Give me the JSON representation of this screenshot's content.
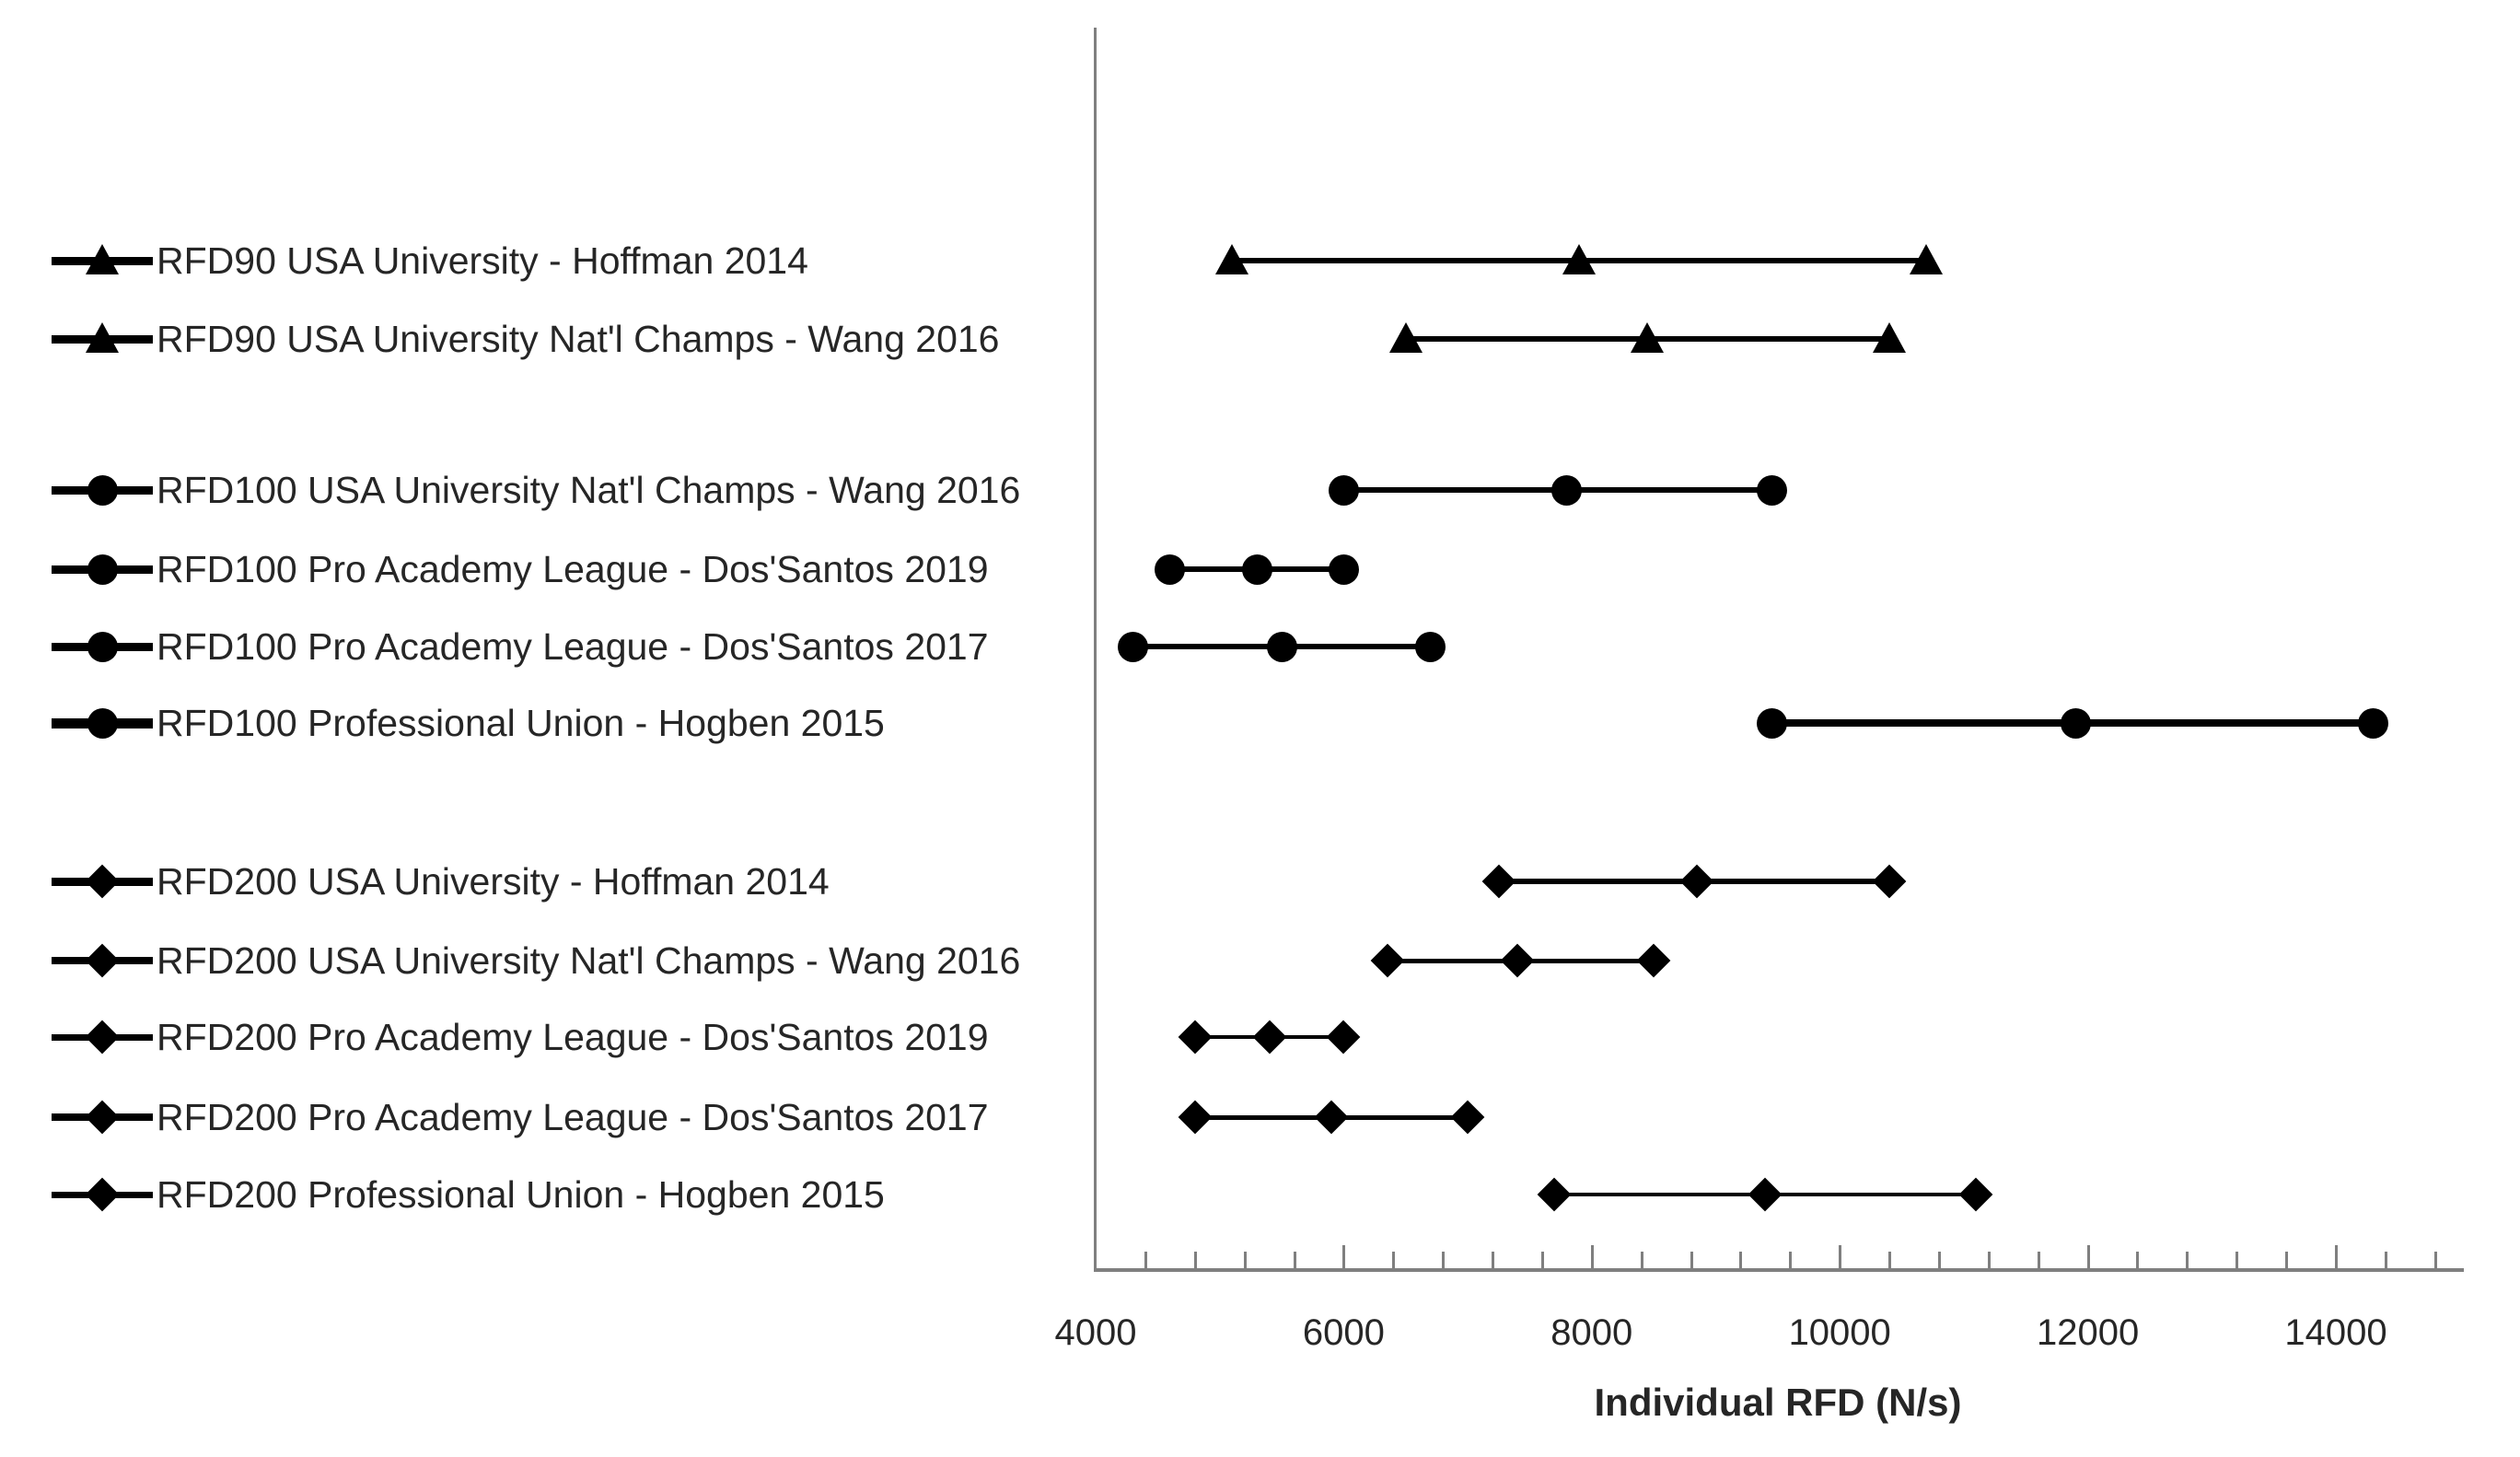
{
  "chart_data": {
    "type": "scatter",
    "subtype": "horizontal-min-mid-max-range",
    "title": "",
    "xlabel": "Individual RFD (N/s)",
    "ylabel": "",
    "grid": false,
    "legend_position": "left-of-rows",
    "x_axis": {
      "min": 4000,
      "max": 15000,
      "major_unit": 2000,
      "minor_unit": 400,
      "major_ticks": [
        4000,
        6000,
        8000,
        10000,
        12000,
        14000
      ],
      "tick_labels": [
        "4000",
        "6000",
        "8000",
        "10000",
        "12000",
        "14000"
      ]
    },
    "groups": [
      {
        "name": "RFD90",
        "marker": "triangle"
      },
      {
        "name": "RFD100",
        "marker": "circle"
      },
      {
        "name": "RFD200",
        "marker": "diamond"
      }
    ],
    "rows": [
      {
        "group": "RFD90",
        "marker": "triangle",
        "label": "RFD90 USA University - Hoffman 2014",
        "min": 5100,
        "mid": 7900,
        "max": 10700
      },
      {
        "group": "RFD90",
        "marker": "triangle",
        "label": "RFD90 USA University Nat'l Champs - Wang 2016",
        "min": 6500,
        "mid": 8450,
        "max": 10400
      },
      {
        "group": "RFD100",
        "marker": "circle",
        "label": "RFD100 USA University Nat'l Champs - Wang 2016",
        "min": 6000,
        "mid": 7800,
        "max": 9450
      },
      {
        "group": "RFD100",
        "marker": "circle",
        "label": "RFD100 Pro Academy League - Dos'Santos 2019",
        "min": 4600,
        "mid": 5300,
        "max": 6000
      },
      {
        "group": "RFD100",
        "marker": "circle",
        "label": "RFD100 Pro Academy League - Dos'Santos 2017",
        "min": 4300,
        "mid": 5500,
        "max": 6700
      },
      {
        "group": "RFD100",
        "marker": "circle",
        "label": "RFD100 Professional Union - Hogben 2015",
        "min": 9450,
        "mid": 11900,
        "max": 14300
      },
      {
        "group": "RFD200",
        "marker": "diamond",
        "label": "RFD200 USA University - Hoffman 2014",
        "min": 7250,
        "mid": 8850,
        "max": 10400
      },
      {
        "group": "RFD200",
        "marker": "diamond",
        "label": "RFD200 USA University Nat'l Champs - Wang 2016",
        "min": 6350,
        "mid": 7400,
        "max": 8500
      },
      {
        "group": "RFD200",
        "marker": "diamond",
        "label": "RFD200 Pro Academy League - Dos'Santos 2019",
        "min": 4800,
        "mid": 5400,
        "max": 6000
      },
      {
        "group": "RFD200",
        "marker": "diamond",
        "label": "RFD200 Pro Academy League - Dos'Santos 2017",
        "min": 4800,
        "mid": 5900,
        "max": 7000
      },
      {
        "group": "RFD200",
        "marker": "diamond",
        "label": "RFD200 Professional Union - Hogben 2015",
        "min": 7700,
        "mid": 9400,
        "max": 11100
      }
    ],
    "colors": {
      "marker": "#000000",
      "line": "#000000",
      "axis": "#7f7f7f",
      "text": "#262626"
    }
  }
}
